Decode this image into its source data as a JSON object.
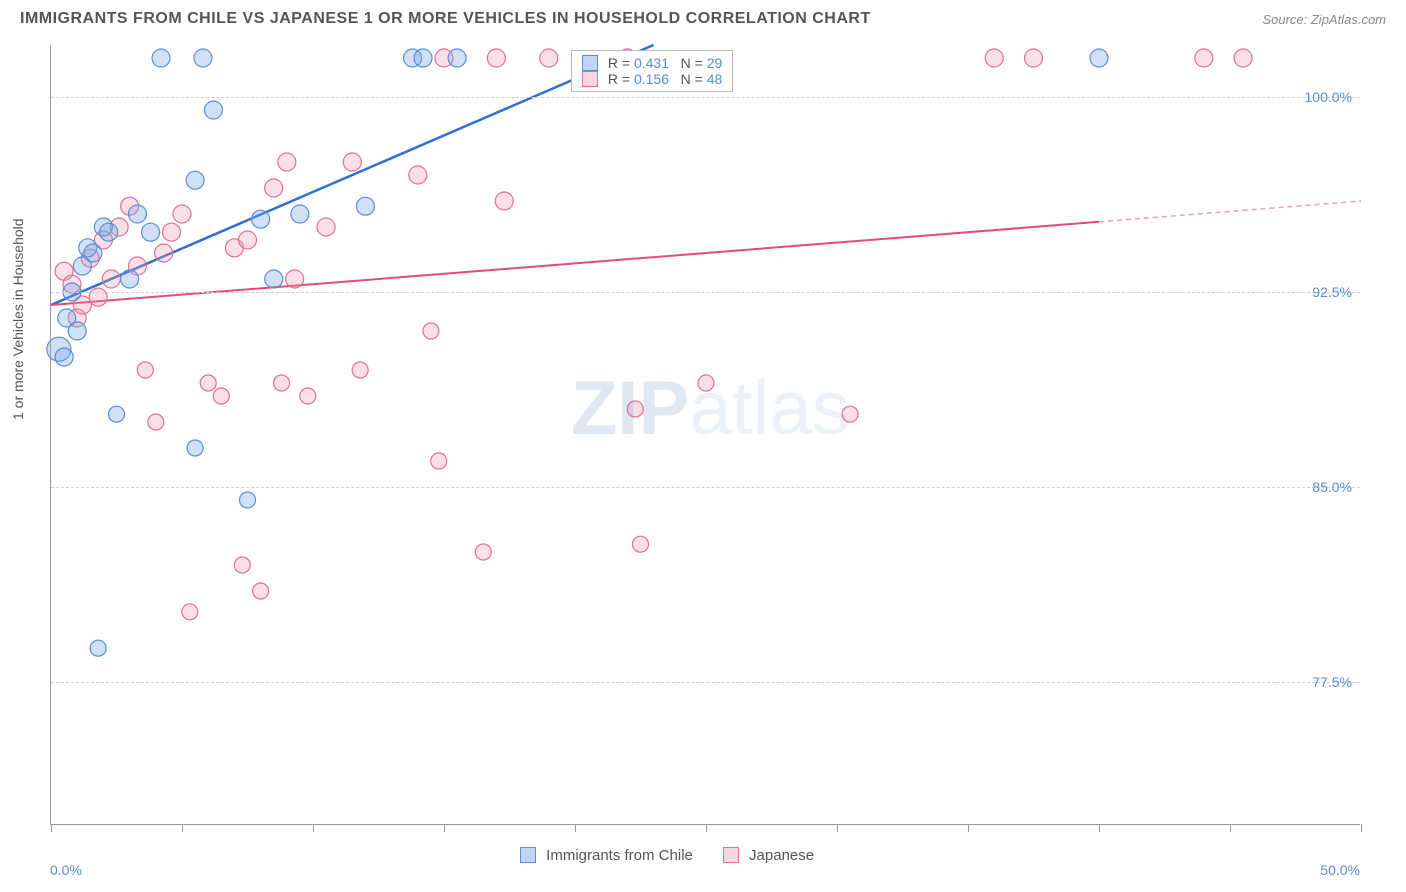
{
  "header": {
    "title": "IMMIGRANTS FROM CHILE VS JAPANESE 1 OR MORE VEHICLES IN HOUSEHOLD CORRELATION CHART",
    "source_label": "Source: ZipAtlas.com"
  },
  "chart": {
    "type": "scatter",
    "ylabel": "1 or more Vehicles in Household",
    "xlim": [
      0,
      50
    ],
    "ylim": [
      72,
      102
    ],
    "ytick_values": [
      77.5,
      85.0,
      92.5,
      100.0
    ],
    "ytick_labels": [
      "77.5%",
      "85.0%",
      "92.5%",
      "100.0%"
    ],
    "xtick_values": [
      0,
      5,
      10,
      15,
      20,
      25,
      30,
      35,
      40,
      45,
      50
    ],
    "xaxis_min_label": "0.0%",
    "xaxis_max_label": "50.0%",
    "grid_color": "#d0d0d0",
    "background_color": "#ffffff",
    "marker_radius": 9,
    "colors": {
      "blue_fill": "rgba(120,165,225,0.35)",
      "blue_stroke": "#5b8cd6",
      "pink_fill": "rgba(240,150,175,0.30)",
      "pink_stroke": "#e36f94",
      "trend_blue": "#2f6fd0",
      "trend_pink": "#e34b7a",
      "axis_text": "#5b8cd6"
    },
    "legend_stats": {
      "rows": [
        {
          "swatch": "blue",
          "r": "0.431",
          "n": "29"
        },
        {
          "swatch": "pink",
          "r": "0.156",
          "n": "48"
        }
      ]
    },
    "bottom_legend": [
      {
        "swatch": "blue",
        "label": "Immigrants from Chile"
      },
      {
        "swatch": "pink",
        "label": "Japanese"
      }
    ],
    "watermark": {
      "prefix": "ZIP",
      "suffix": "atlas"
    },
    "series": {
      "blue": {
        "label": "Immigrants from Chile",
        "trend": {
          "x0": 0,
          "y0": 92.0,
          "x1": 23,
          "y1": 102.0
        },
        "points": [
          [
            0.3,
            90.3,
            12
          ],
          [
            0.5,
            90.0,
            9
          ],
          [
            0.6,
            91.5,
            9
          ],
          [
            0.8,
            92.5,
            9
          ],
          [
            1.0,
            91.0,
            9
          ],
          [
            1.2,
            93.5,
            9
          ],
          [
            1.4,
            94.2,
            9
          ],
          [
            1.6,
            94.0,
            9
          ],
          [
            1.8,
            78.8,
            8
          ],
          [
            2.0,
            95.0,
            9
          ],
          [
            2.2,
            94.8,
            9
          ],
          [
            2.5,
            87.8,
            8
          ],
          [
            3.0,
            93.0,
            9
          ],
          [
            3.3,
            95.5,
            9
          ],
          [
            3.8,
            94.8,
            9
          ],
          [
            4.2,
            101.5,
            9
          ],
          [
            5.5,
            96.8,
            9
          ],
          [
            5.8,
            101.5,
            9
          ],
          [
            5.5,
            86.5,
            8
          ],
          [
            6.2,
            99.5,
            9
          ],
          [
            7.5,
            84.5,
            8
          ],
          [
            8.0,
            95.3,
            9
          ],
          [
            9.5,
            95.5,
            9
          ],
          [
            12.0,
            95.8,
            9
          ],
          [
            13.8,
            101.5,
            9
          ],
          [
            14.2,
            101.5,
            9
          ],
          [
            15.5,
            101.5,
            9
          ],
          [
            40.0,
            101.5,
            9
          ],
          [
            8.5,
            93.0,
            9
          ]
        ]
      },
      "pink": {
        "label": "Japanese",
        "trend_solid": {
          "x0": 0,
          "y0": 92.0,
          "x1": 40,
          "y1": 95.2
        },
        "trend_dash": {
          "x0": 40,
          "y0": 95.2,
          "x1": 50,
          "y1": 96.0
        },
        "points": [
          [
            0.5,
            93.3,
            9
          ],
          [
            0.8,
            92.8,
            9
          ],
          [
            1.0,
            91.5,
            9
          ],
          [
            1.2,
            92.0,
            9
          ],
          [
            1.5,
            93.8,
            9
          ],
          [
            1.8,
            92.3,
            9
          ],
          [
            2.0,
            94.5,
            9
          ],
          [
            2.3,
            93.0,
            9
          ],
          [
            2.6,
            95.0,
            9
          ],
          [
            3.0,
            95.8,
            9
          ],
          [
            3.3,
            93.5,
            9
          ],
          [
            3.6,
            89.5,
            8
          ],
          [
            4.0,
            87.5,
            8
          ],
          [
            4.3,
            94.0,
            9
          ],
          [
            4.6,
            94.8,
            9
          ],
          [
            5.0,
            95.5,
            9
          ],
          [
            5.3,
            80.2,
            8
          ],
          [
            6.0,
            89.0,
            8
          ],
          [
            6.5,
            88.5,
            8
          ],
          [
            7.0,
            94.2,
            9
          ],
          [
            7.3,
            82.0,
            8
          ],
          [
            7.5,
            94.5,
            9
          ],
          [
            8.0,
            81.0,
            8
          ],
          [
            8.5,
            96.5,
            9
          ],
          [
            8.8,
            89.0,
            8
          ],
          [
            9.0,
            97.5,
            9
          ],
          [
            9.3,
            93.0,
            9
          ],
          [
            9.8,
            88.5,
            8
          ],
          [
            10.5,
            95.0,
            9
          ],
          [
            11.5,
            97.5,
            9
          ],
          [
            11.8,
            89.5,
            8
          ],
          [
            14.0,
            97.0,
            9
          ],
          [
            14.5,
            91.0,
            8
          ],
          [
            14.8,
            86.0,
            8
          ],
          [
            15.0,
            101.5,
            9
          ],
          [
            16.5,
            82.5,
            8
          ],
          [
            17.0,
            101.5,
            9
          ],
          [
            17.3,
            96.0,
            9
          ],
          [
            19.0,
            101.5,
            9
          ],
          [
            22.0,
            101.5,
            9
          ],
          [
            22.3,
            88.0,
            8
          ],
          [
            22.5,
            82.8,
            8
          ],
          [
            25.0,
            89.0,
            8
          ],
          [
            30.5,
            87.8,
            8
          ],
          [
            36.0,
            101.5,
            9
          ],
          [
            37.5,
            101.5,
            9
          ],
          [
            44.0,
            101.5,
            9
          ],
          [
            45.5,
            101.5,
            9
          ]
        ]
      }
    }
  }
}
